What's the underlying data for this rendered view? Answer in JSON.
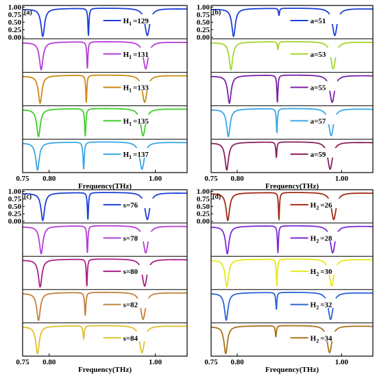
{
  "chart_data": [
    {
      "type": "line",
      "panel": "(a)",
      "xlabel": "Frequency(THz)",
      "xlim": [
        0.75,
        1.06
      ],
      "ylim": [
        0.0,
        1.0
      ],
      "x_ticks": [
        "0.75",
        "0.80",
        "1.00"
      ],
      "y_ticks": [
        "1.00",
        "0.75",
        "0.50",
        "0.25",
        "0.00"
      ],
      "legend_param": "H",
      "legend_sub": "1",
      "series": [
        {
          "name": "=129",
          "color": "#1a3fd6",
          "dips": [
            {
              "f": 0.788,
              "w": 0.004,
              "d": 0.97
            },
            {
              "f": 0.874,
              "w": 0.0012,
              "d": 0.95
            },
            {
              "f": 0.985,
              "w": 0.0055,
              "d": 0.94
            }
          ]
        },
        {
          "name": "=131",
          "color": "#b43dd6",
          "dips": [
            {
              "f": 0.785,
              "w": 0.004,
              "d": 0.97
            },
            {
              "f": 0.872,
              "w": 0.0012,
              "d": 0.93
            },
            {
              "f": 0.982,
              "w": 0.0055,
              "d": 0.94
            }
          ]
        },
        {
          "name": "=133",
          "color": "#cc8a12",
          "dips": [
            {
              "f": 0.783,
              "w": 0.004,
              "d": 0.97
            },
            {
              "f": 0.87,
              "w": 0.0012,
              "d": 0.95
            },
            {
              "f": 0.98,
              "w": 0.0055,
              "d": 0.94
            }
          ]
        },
        {
          "name": "=135",
          "color": "#3ccf26",
          "dips": [
            {
              "f": 0.78,
              "w": 0.004,
              "d": 0.97
            },
            {
              "f": 0.868,
              "w": 0.0014,
              "d": 0.95
            },
            {
              "f": 0.977,
              "w": 0.0055,
              "d": 0.94
            }
          ]
        },
        {
          "name": "=137",
          "color": "#3aa6e6",
          "dips": [
            {
              "f": 0.778,
              "w": 0.004,
              "d": 0.97
            },
            {
              "f": 0.865,
              "w": 0.0014,
              "d": 0.95
            },
            {
              "f": 0.975,
              "w": 0.0055,
              "d": 0.94
            }
          ]
        }
      ]
    },
    {
      "type": "line",
      "panel": "(b)",
      "xlabel": "Frequency(THz)",
      "xlim": [
        0.75,
        1.06
      ],
      "ylim": [
        0.0,
        1.0
      ],
      "x_ticks": [
        "0.75",
        "0.80",
        "1.00"
      ],
      "y_ticks": [
        "1.00",
        "0.75",
        "0.50",
        "0.25",
        "0.00"
      ],
      "legend_param": "a",
      "legend_sub": "",
      "series": [
        {
          "name": "=51",
          "color": "#1a3fd6",
          "dips": [
            {
              "f": 0.793,
              "w": 0.004,
              "d": 0.97
            },
            {
              "f": 0.88,
              "w": 0.0012,
              "d": 0.25
            },
            {
              "f": 0.987,
              "w": 0.0055,
              "d": 0.94
            }
          ]
        },
        {
          "name": "=53",
          "color": "#a6d62e",
          "dips": [
            {
              "f": 0.788,
              "w": 0.004,
              "d": 0.97
            },
            {
              "f": 0.878,
              "w": 0.0012,
              "d": 0.28
            },
            {
              "f": 0.984,
              "w": 0.0055,
              "d": 0.94
            }
          ]
        },
        {
          "name": "=55",
          "color": "#7a1fa8",
          "dips": [
            {
              "f": 0.785,
              "w": 0.004,
              "d": 0.97
            },
            {
              "f": 0.877,
              "w": 0.0012,
              "d": 0.95
            },
            {
              "f": 0.982,
              "w": 0.0055,
              "d": 0.94
            }
          ]
        },
        {
          "name": "=57",
          "color": "#3aa6e6",
          "dips": [
            {
              "f": 0.783,
              "w": 0.004,
              "d": 0.97
            },
            {
              "f": 0.876,
              "w": 0.0012,
              "d": 0.85
            },
            {
              "f": 0.98,
              "w": 0.0055,
              "d": 0.94
            }
          ]
        },
        {
          "name": "=59",
          "color": "#8a1f5c",
          "dips": [
            {
              "f": 0.78,
              "w": 0.004,
              "d": 0.97
            },
            {
              "f": 0.875,
              "w": 0.0012,
              "d": 0.55
            },
            {
              "f": 0.978,
              "w": 0.0055,
              "d": 0.94
            }
          ]
        }
      ]
    },
    {
      "type": "line",
      "panel": "(c)",
      "xlabel": "Frequency(THz)",
      "xlim": [
        0.75,
        1.06
      ],
      "ylim": [
        0.0,
        1.0
      ],
      "x_ticks": [
        "0.75",
        "0.80",
        "1.00"
      ],
      "y_ticks": [
        "1.00",
        "0.75",
        "0.50",
        "0.25",
        "0.00"
      ],
      "legend_param": "s",
      "legend_sub": "",
      "series": [
        {
          "name": "=76",
          "color": "#1a3fd6",
          "dips": [
            {
              "f": 0.788,
              "w": 0.004,
              "d": 0.97
            },
            {
              "f": 0.873,
              "w": 0.0012,
              "d": 0.95
            },
            {
              "f": 0.985,
              "w": 0.0055,
              "d": 0.94
            }
          ]
        },
        {
          "name": "=78",
          "color": "#b43dd6",
          "dips": [
            {
              "f": 0.785,
              "w": 0.004,
              "d": 0.97
            },
            {
              "f": 0.872,
              "w": 0.0012,
              "d": 0.95
            },
            {
              "f": 0.982,
              "w": 0.0055,
              "d": 0.94
            }
          ]
        },
        {
          "name": "=80",
          "color": "#a8208a",
          "dips": [
            {
              "f": 0.783,
              "w": 0.004,
              "d": 0.97
            },
            {
              "f": 0.871,
              "w": 0.0012,
              "d": 0.95
            },
            {
              "f": 0.98,
              "w": 0.0055,
              "d": 0.94
            }
          ]
        },
        {
          "name": "=82",
          "color": "#c2803c",
          "dips": [
            {
              "f": 0.78,
              "w": 0.004,
              "d": 0.97
            },
            {
              "f": 0.868,
              "w": 0.0014,
              "d": 0.8
            },
            {
              "f": 0.977,
              "w": 0.0055,
              "d": 0.94
            }
          ]
        },
        {
          "name": "=84",
          "color": "#e0c02a",
          "dips": [
            {
              "f": 0.778,
              "w": 0.004,
              "d": 0.97
            },
            {
              "f": 0.865,
              "w": 0.0014,
              "d": 0.45
            },
            {
              "f": 0.975,
              "w": 0.0055,
              "d": 0.94
            }
          ]
        }
      ]
    },
    {
      "type": "line",
      "panel": "(d)",
      "xlabel": "Frequency(THz)",
      "xlim": [
        0.75,
        1.06
      ],
      "ylim": [
        0.0,
        1.0
      ],
      "x_ticks": [
        "0.75",
        "0.80",
        "1.00"
      ],
      "y_ticks": [
        "1.00",
        "0.75",
        "0.50",
        "0.25",
        "0.00"
      ],
      "legend_param": "H",
      "legend_sub": "2",
      "series": [
        {
          "name": "=26",
          "color": "#a02a14",
          "dips": [
            {
              "f": 0.782,
              "w": 0.004,
              "d": 0.97
            },
            {
              "f": 0.88,
              "w": 0.0012,
              "d": 0.95
            },
            {
              "f": 0.985,
              "w": 0.0055,
              "d": 0.94
            }
          ]
        },
        {
          "name": "=28",
          "color": "#7a2ad6",
          "dips": [
            {
              "f": 0.781,
              "w": 0.004,
              "d": 0.97
            },
            {
              "f": 0.878,
              "w": 0.0012,
              "d": 0.95
            },
            {
              "f": 0.983,
              "w": 0.0055,
              "d": 0.94
            }
          ]
        },
        {
          "name": "=30",
          "color": "#e8e81a",
          "dips": [
            {
              "f": 0.78,
              "w": 0.004,
              "d": 0.97
            },
            {
              "f": 0.876,
              "w": 0.0012,
              "d": 0.95
            },
            {
              "f": 0.981,
              "w": 0.0055,
              "d": 0.94
            }
          ]
        },
        {
          "name": "=32",
          "color": "#2a62d6",
          "dips": [
            {
              "f": 0.779,
              "w": 0.004,
              "d": 0.97
            },
            {
              "f": 0.875,
              "w": 0.0012,
              "d": 0.6
            },
            {
              "f": 0.979,
              "w": 0.0055,
              "d": 0.94
            }
          ]
        },
        {
          "name": "=34",
          "color": "#a8721a",
          "dips": [
            {
              "f": 0.778,
              "w": 0.004,
              "d": 0.97
            },
            {
              "f": 0.874,
              "w": 0.0012,
              "d": 0.4
            },
            {
              "f": 0.977,
              "w": 0.0055,
              "d": 0.94
            }
          ]
        }
      ]
    }
  ]
}
